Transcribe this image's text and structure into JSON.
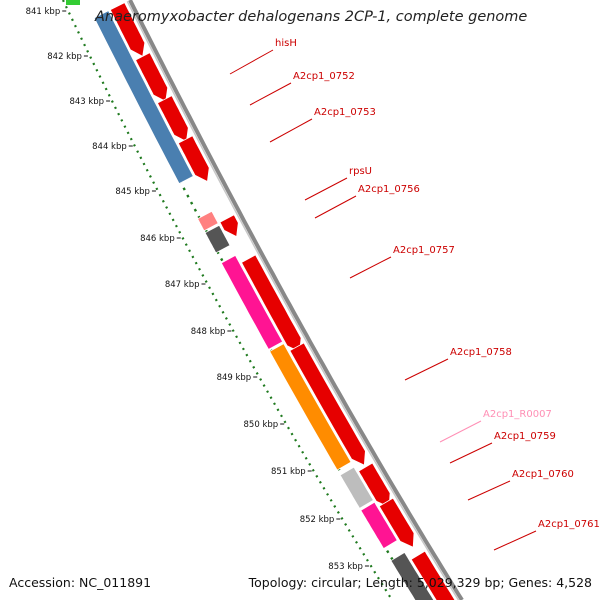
{
  "header": {
    "title": "Anaeromyxobacter dehalogenans 2CP-1, complete genome"
  },
  "footer": {
    "accession": "Accession: NC_011891",
    "summary": "Topology: circular; Length: 5,029,329 bp; Genes: 4,528"
  },
  "colors": {
    "backbone": "#888888",
    "tick_dots": "#1f7a1f",
    "cds_forward": "#e60000",
    "cds_dark": "#cc0000",
    "gene_blue": "#4a7fb0",
    "gene_pink": "#ff1493",
    "gene_orange": "#ff8c00",
    "gene_grey": "#bdbdbd",
    "gene_darkgrey": "#555555",
    "rna_light": "#ff8080",
    "label_red": "#cc0000",
    "label_pink": "#ff8fb5",
    "top_marker_green": "#33cc33"
  },
  "ruler": {
    "ticks": [
      "841 kbp",
      "842 kbp",
      "843 kbp",
      "844 kbp",
      "845 kbp",
      "846 kbp",
      "847 kbp",
      "848 kbp",
      "849 kbp",
      "850 kbp",
      "851 kbp",
      "852 kbp",
      "853 kbp"
    ]
  },
  "gene_labels": [
    {
      "name": "hisH",
      "color": "label_red"
    },
    {
      "name": "A2cp1_0752",
      "color": "label_red"
    },
    {
      "name": "A2cp1_0753",
      "color": "label_red"
    },
    {
      "name": "rpsU",
      "color": "label_red"
    },
    {
      "name": "A2cp1_0756",
      "color": "label_red"
    },
    {
      "name": "A2cp1_0757",
      "color": "label_red"
    },
    {
      "name": "A2cp1_0758",
      "color": "label_red"
    },
    {
      "name": "A2cp1_R0007",
      "color": "label_pink"
    },
    {
      "name": "A2cp1_0759",
      "color": "label_red"
    },
    {
      "name": "A2cp1_0760",
      "color": "label_red"
    },
    {
      "name": "A2cp1_0761",
      "color": "label_red"
    }
  ]
}
